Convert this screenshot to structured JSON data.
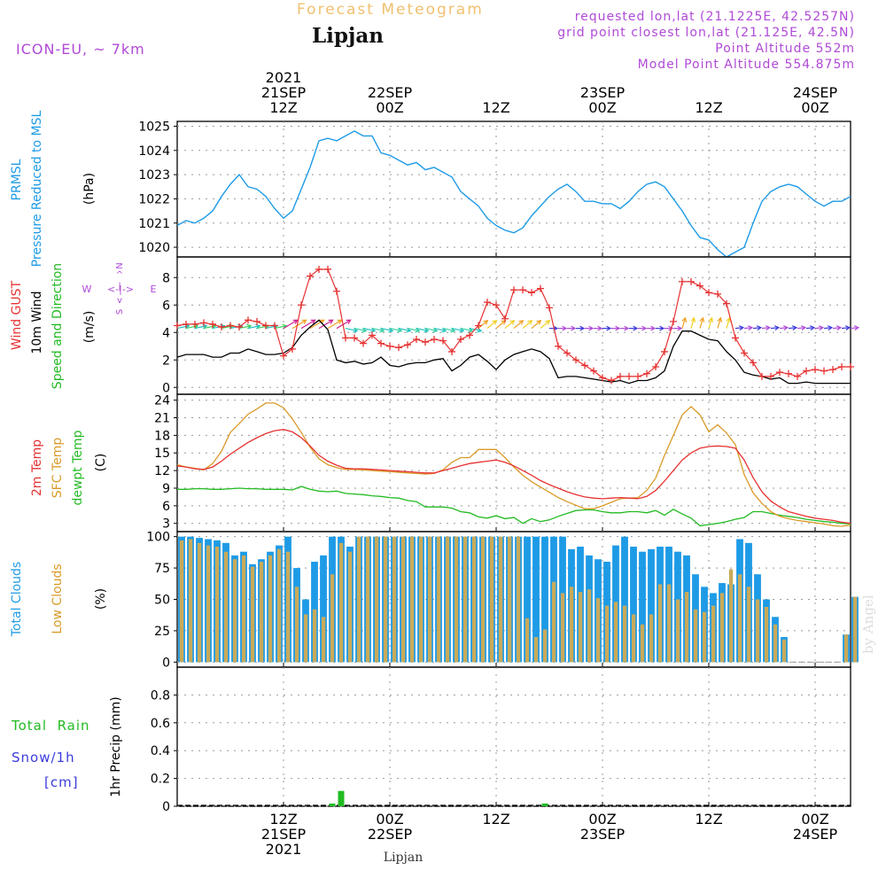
{
  "header": {
    "faded_title": "Forecast Meteogram",
    "location": "Lipjan",
    "model": "ICON-EU, ~ 7km",
    "requested": "requested lon,lat (21.1225E, 42.5257N)",
    "gridpoint": "grid point closest lon,lat (21.125E, 42.5N)",
    "point_altitude": "Point Altitude 552m",
    "model_altitude": "Model Point Altitude 554.875m",
    "footer_location": "Lipjan",
    "watermark": "by Angel"
  },
  "colors": {
    "pressure": "#1e9be6",
    "gust": "#e63232",
    "wind": "#000000",
    "t2m": "#e63232",
    "sfc": "#d99a28",
    "dewpt": "#22bb22",
    "total_clouds": "#1e9be6",
    "low_clouds": "#c8aa5a",
    "rain": "#22bb22",
    "snow": "#3b3bdd",
    "model_text": "#b04ad6",
    "faded": "#f0c070"
  },
  "time_axis": {
    "start_hour": 0,
    "end_hour": 76,
    "top_labels": [
      {
        "h": 12,
        "lines": [
          "2021",
          "21SEP",
          "12Z"
        ]
      },
      {
        "h": 24,
        "lines": [
          "22SEP",
          "00Z"
        ]
      },
      {
        "h": 36,
        "lines": [
          "12Z"
        ]
      },
      {
        "h": 48,
        "lines": [
          "23SEP",
          "00Z"
        ]
      },
      {
        "h": 60,
        "lines": [
          "12Z"
        ]
      },
      {
        "h": 72,
        "lines": [
          "24SEP",
          "00Z"
        ]
      }
    ],
    "bottom_labels": [
      {
        "h": 12,
        "lines": [
          "12Z",
          "21SEP",
          "2021"
        ]
      },
      {
        "h": 24,
        "lines": [
          "00Z",
          "22SEP"
        ]
      },
      {
        "h": 36,
        "lines": [
          "12Z"
        ]
      },
      {
        "h": 48,
        "lines": [
          "00Z",
          "23SEP"
        ]
      },
      {
        "h": 60,
        "lines": [
          "12Z"
        ]
      },
      {
        "h": 72,
        "lines": [
          "00Z",
          "24SEP"
        ]
      }
    ]
  },
  "panels": {
    "pressure": {
      "labels": [
        "PRMSL",
        "Pressure Reduced to MSL"
      ],
      "unit": "(hPa)",
      "ticks": [
        "1020",
        "1021",
        "1022",
        "1023",
        "1024",
        "1025"
      ]
    },
    "wind": {
      "labels": [
        "Wind GUST",
        "10m Wind",
        "Speed and Direction"
      ],
      "unit": "(m/s)",
      "ticks": [
        "0",
        "2",
        "4",
        "6",
        "8"
      ],
      "compass": {
        "n": "N",
        "s": "S",
        "w": "W",
        "e": "E",
        "vert1": "^",
        "vert2": "|",
        "vert3": "v",
        "horiz": "<-|->"
      }
    },
    "temp": {
      "labels": [
        "2m Temp",
        "SFC Temp",
        "dewpt Temp"
      ],
      "unit": "(C)",
      "ticks": [
        "3",
        "6",
        "9",
        "12",
        "15",
        "18",
        "21",
        "24"
      ]
    },
    "clouds": {
      "labels": [
        "Total Clouds",
        "Low Clouds"
      ],
      "unit": "(%)",
      "ticks": [
        "0",
        "25",
        "50",
        "75",
        "100"
      ]
    },
    "precip": {
      "labels": [
        "Total  Rain",
        "Snow/1h",
        "[cm]"
      ],
      "unit": "1hr Precip (mm)",
      "ticks": [
        "0",
        "0.2",
        "0.4",
        "0.6",
        "0.8"
      ]
    }
  },
  "chart_data": [
    {
      "type": "line",
      "name": "pressure",
      "x_hours": [
        0,
        1,
        2,
        3,
        4,
        5,
        6,
        7,
        8,
        9,
        10,
        11,
        12,
        13,
        14,
        15,
        16,
        17,
        18,
        19,
        20,
        21,
        22,
        23,
        24,
        25,
        26,
        27,
        28,
        29,
        30,
        31,
        32,
        33,
        34,
        35,
        36,
        37,
        38,
        39,
        40,
        41,
        42,
        43,
        44,
        45,
        46,
        47,
        48,
        49,
        50,
        51,
        52,
        53,
        54,
        55,
        56,
        57,
        58,
        59,
        60,
        61,
        62,
        63,
        64,
        65,
        66,
        67,
        68,
        69,
        70,
        71,
        72,
        73,
        74,
        75,
        76
      ],
      "series": [
        {
          "name": "PRMSL",
          "values": [
            1020.9,
            1021.1,
            1021.0,
            1021.2,
            1021.5,
            1022.1,
            1022.6,
            1023.0,
            1022.5,
            1022.4,
            1022.1,
            1021.6,
            1021.2,
            1021.5,
            1022.4,
            1023.3,
            1024.4,
            1024.5,
            1024.4,
            1024.6,
            1024.8,
            1024.6,
            1024.6,
            1023.9,
            1023.8,
            1023.6,
            1023.4,
            1023.5,
            1023.2,
            1023.3,
            1023.1,
            1022.9,
            1022.3,
            1022.0,
            1021.7,
            1021.2,
            1020.9,
            1020.7,
            1020.6,
            1020.8,
            1021.3,
            1021.7,
            1022.1,
            1022.4,
            1022.6,
            1022.3,
            1021.9,
            1021.9,
            1021.8,
            1021.8,
            1021.6,
            1021.9,
            1022.3,
            1022.6,
            1022.7,
            1022.5,
            1022.0,
            1021.5,
            1020.9,
            1020.4,
            1020.3,
            1019.9,
            1019.6,
            1019.8,
            1020.0,
            1021.0,
            1021.9,
            1022.3,
            1022.5,
            1022.6,
            1022.5,
            1022.2,
            1021.9,
            1021.7,
            1021.9,
            1021.9,
            1022.1
          ]
        }
      ],
      "ylim": [
        1019.6,
        1025.2
      ]
    },
    {
      "type": "line",
      "name": "wind",
      "x_hours": [
        0,
        1,
        2,
        3,
        4,
        5,
        6,
        7,
        8,
        9,
        10,
        11,
        12,
        13,
        14,
        15,
        16,
        17,
        18,
        19,
        20,
        21,
        22,
        23,
        24,
        25,
        26,
        27,
        28,
        29,
        30,
        31,
        32,
        33,
        34,
        35,
        36,
        37,
        38,
        39,
        40,
        41,
        42,
        43,
        44,
        45,
        46,
        47,
        48,
        49,
        50,
        51,
        52,
        53,
        54,
        55,
        56,
        57,
        58,
        59,
        60,
        61,
        62,
        63,
        64,
        65,
        66,
        67,
        68,
        69,
        70,
        71,
        72,
        73,
        74,
        75,
        76
      ],
      "series": [
        {
          "name": "Wind GUST",
          "values": [
            4.5,
            4.6,
            4.6,
            4.7,
            4.6,
            4.4,
            4.5,
            4.4,
            4.9,
            4.8,
            4.5,
            4.5,
            2.3,
            2.8,
            6.0,
            8.1,
            8.6,
            8.6,
            7.0,
            3.6,
            3.6,
            3.2,
            3.8,
            3.2,
            3.0,
            2.9,
            3.1,
            3.5,
            3.3,
            3.5,
            3.4,
            2.6,
            3.5,
            3.8,
            4.5,
            6.2,
            6.0,
            5.0,
            7.1,
            7.1,
            6.9,
            7.2,
            5.8,
            3.0,
            2.5,
            2.0,
            1.6,
            1.2,
            0.7,
            0.5,
            0.8,
            0.8,
            0.8,
            1.0,
            1.5,
            2.6,
            4.8,
            7.7,
            7.7,
            7.4,
            6.9,
            6.8,
            6.1,
            3.6,
            2.5,
            1.8,
            0.8,
            0.8,
            1.1,
            1.0,
            0.8,
            1.2,
            1.3,
            1.2,
            1.3,
            1.5,
            1.5
          ]
        },
        {
          "name": "10m Wind",
          "values": [
            2.2,
            2.4,
            2.4,
            2.4,
            2.2,
            2.2,
            2.5,
            2.5,
            2.8,
            2.6,
            2.4,
            2.4,
            2.5,
            2.9,
            3.8,
            4.4,
            4.9,
            4.2,
            2.0,
            1.8,
            1.9,
            1.7,
            1.8,
            2.2,
            1.6,
            1.5,
            1.7,
            1.8,
            1.8,
            2.0,
            2.1,
            1.2,
            1.6,
            2.2,
            2.4,
            1.9,
            1.3,
            2.0,
            2.4,
            2.6,
            2.8,
            2.6,
            2.1,
            0.7,
            0.8,
            0.8,
            0.7,
            0.6,
            0.5,
            0.4,
            0.5,
            0.3,
            0.5,
            0.5,
            0.7,
            1.2,
            3.0,
            4.1,
            4.1,
            3.8,
            3.5,
            3.4,
            2.6,
            2.0,
            1.1,
            0.9,
            0.8,
            0.6,
            0.7,
            0.3,
            0.3,
            0.4,
            0.3,
            0.3,
            0.3,
            0.3,
            0.3
          ]
        }
      ],
      "ylim": [
        -0.5,
        9.5
      ]
    },
    {
      "type": "line",
      "name": "temperature",
      "x_hours": [
        0,
        1,
        2,
        3,
        4,
        5,
        6,
        7,
        8,
        9,
        10,
        11,
        12,
        13,
        14,
        15,
        16,
        17,
        18,
        19,
        20,
        21,
        22,
        23,
        24,
        25,
        26,
        27,
        28,
        29,
        30,
        31,
        32,
        33,
        34,
        35,
        36,
        37,
        38,
        39,
        40,
        41,
        42,
        43,
        44,
        45,
        46,
        47,
        48,
        49,
        50,
        51,
        52,
        53,
        54,
        55,
        56,
        57,
        58,
        59,
        60,
        61,
        62,
        63,
        64,
        65,
        66,
        67,
        68,
        69,
        70,
        71,
        72,
        73,
        74,
        75,
        76
      ],
      "series": [
        {
          "name": "2m Temp",
          "values": [
            12.8,
            12.6,
            12.3,
            12.2,
            12.6,
            13.6,
            14.8,
            15.8,
            16.8,
            17.6,
            18.3,
            18.8,
            19.0,
            18.6,
            17.6,
            16.2,
            14.6,
            13.6,
            12.9,
            12.4,
            12.3,
            12.3,
            12.2,
            12.1,
            12.0,
            11.9,
            11.8,
            11.7,
            11.6,
            11.6,
            12.0,
            12.4,
            12.8,
            13.2,
            13.4,
            13.6,
            13.8,
            13.4,
            12.8,
            12.0,
            11.2,
            10.3,
            9.6,
            9.0,
            8.4,
            7.9,
            7.5,
            7.3,
            7.2,
            7.3,
            7.4,
            7.3,
            7.2,
            7.6,
            8.6,
            10.2,
            12.0,
            13.8,
            15.0,
            15.8,
            16.1,
            16.2,
            16.1,
            15.8,
            13.8,
            10.8,
            8.4,
            6.8,
            5.8,
            5.0,
            4.6,
            4.2,
            3.9,
            3.7,
            3.5,
            3.2,
            3.0
          ]
        },
        {
          "name": "SFC Temp",
          "values": [
            13.0,
            12.6,
            12.4,
            12.1,
            13.2,
            15.3,
            18.5,
            20.0,
            21.6,
            22.5,
            23.5,
            23.5,
            22.7,
            20.8,
            18.5,
            16.0,
            14.0,
            13.0,
            12.5,
            12.2,
            12.2,
            12.1,
            12.0,
            11.9,
            11.8,
            11.7,
            11.6,
            11.5,
            11.4,
            11.5,
            12.1,
            13.4,
            14.2,
            14.2,
            15.6,
            15.6,
            15.6,
            14.2,
            12.6,
            11.2,
            10.1,
            9.2,
            8.3,
            7.4,
            6.7,
            6.1,
            5.5,
            5.5,
            6.0,
            6.6,
            7.2,
            7.3,
            7.4,
            8.6,
            10.7,
            14.6,
            18.0,
            21.5,
            22.9,
            21.5,
            18.6,
            19.8,
            18.4,
            16.4,
            11.3,
            8.2,
            6.4,
            5.0,
            4.2,
            3.8,
            3.5,
            3.3,
            3.1,
            2.9,
            2.6,
            2.5,
            2.7
          ]
        },
        {
          "name": "dewpt Temp",
          "values": [
            8.8,
            8.8,
            8.9,
            8.9,
            8.8,
            8.8,
            8.9,
            9.0,
            8.9,
            8.9,
            8.8,
            8.8,
            8.8,
            8.7,
            9.3,
            8.8,
            8.5,
            8.4,
            8.5,
            8.1,
            8.0,
            7.9,
            7.7,
            7.6,
            7.4,
            7.3,
            6.9,
            6.7,
            5.8,
            5.8,
            5.8,
            5.6,
            5.0,
            4.8,
            4.1,
            3.9,
            4.3,
            3.8,
            4.0,
            3.0,
            3.8,
            3.3,
            3.6,
            4.2,
            4.7,
            5.2,
            5.3,
            5.3,
            5.0,
            4.8,
            4.8,
            5.0,
            5.0,
            4.8,
            5.2,
            4.4,
            5.4,
            4.6,
            3.9,
            2.6,
            2.8,
            3.0,
            3.3,
            3.7,
            4.0,
            5.0,
            5.0,
            4.7,
            4.4,
            4.2,
            4.0,
            3.7,
            3.5,
            3.3,
            3.2,
            3.0,
            2.9
          ]
        }
      ],
      "ylim": [
        1.6,
        25.0
      ]
    },
    {
      "type": "bar",
      "name": "clouds",
      "x_hours": [
        0,
        1,
        2,
        3,
        4,
        5,
        6,
        7,
        8,
        9,
        10,
        11,
        12,
        13,
        14,
        15,
        16,
        17,
        18,
        19,
        20,
        21,
        22,
        23,
        24,
        25,
        26,
        27,
        28,
        29,
        30,
        31,
        32,
        33,
        34,
        35,
        36,
        37,
        38,
        39,
        40,
        41,
        42,
        43,
        44,
        45,
        46,
        47,
        48,
        49,
        50,
        51,
        52,
        53,
        54,
        55,
        56,
        57,
        58,
        59,
        60,
        61,
        62,
        63,
        64,
        65,
        66,
        67,
        68,
        69,
        70,
        71,
        72,
        73,
        74,
        75,
        76
      ],
      "series": [
        {
          "name": "Total Clouds",
          "values": [
            100,
            100,
            99,
            98,
            97,
            95,
            85,
            88,
            78,
            82,
            88,
            93,
            100,
            75,
            50,
            80,
            85,
            100,
            100,
            92,
            100,
            100,
            100,
            100,
            100,
            100,
            100,
            100,
            100,
            100,
            100,
            100,
            100,
            100,
            100,
            100,
            100,
            100,
            100,
            100,
            100,
            100,
            100,
            100,
            90,
            92,
            85,
            82,
            80,
            93,
            100,
            92,
            88,
            90,
            92,
            92,
            88,
            85,
            70,
            60,
            55,
            63,
            62,
            98,
            95,
            70,
            50,
            36,
            20,
            0,
            0,
            0,
            0,
            0,
            0,
            22,
            52
          ]
        },
        {
          "name": "Low Clouds",
          "values": [
            97,
            98,
            95,
            93,
            92,
            88,
            82,
            85,
            76,
            80,
            85,
            90,
            88,
            60,
            38,
            42,
            36,
            70,
            95,
            88,
            100,
            100,
            100,
            100,
            100,
            100,
            100,
            100,
            100,
            100,
            100,
            100,
            100,
            100,
            100,
            100,
            100,
            100,
            100,
            35,
            20,
            26,
            64,
            55,
            60,
            56,
            58,
            51,
            45,
            48,
            45,
            38,
            30,
            38,
            62,
            62,
            50,
            56,
            42,
            40,
            45,
            55,
            74,
            70,
            60,
            50,
            44,
            30,
            18,
            0,
            0,
            0,
            0,
            0,
            0,
            22,
            52
          ]
        }
      ],
      "ylim": [
        -4,
        104
      ]
    },
    {
      "type": "bar",
      "name": "precipitation",
      "x_hours": [
        17,
        18,
        41
      ],
      "series": [
        {
          "name": "Total Rain",
          "values": [
            0.02,
            0.11,
            0.02
          ]
        }
      ],
      "ylim": [
        0,
        1.0
      ]
    }
  ]
}
